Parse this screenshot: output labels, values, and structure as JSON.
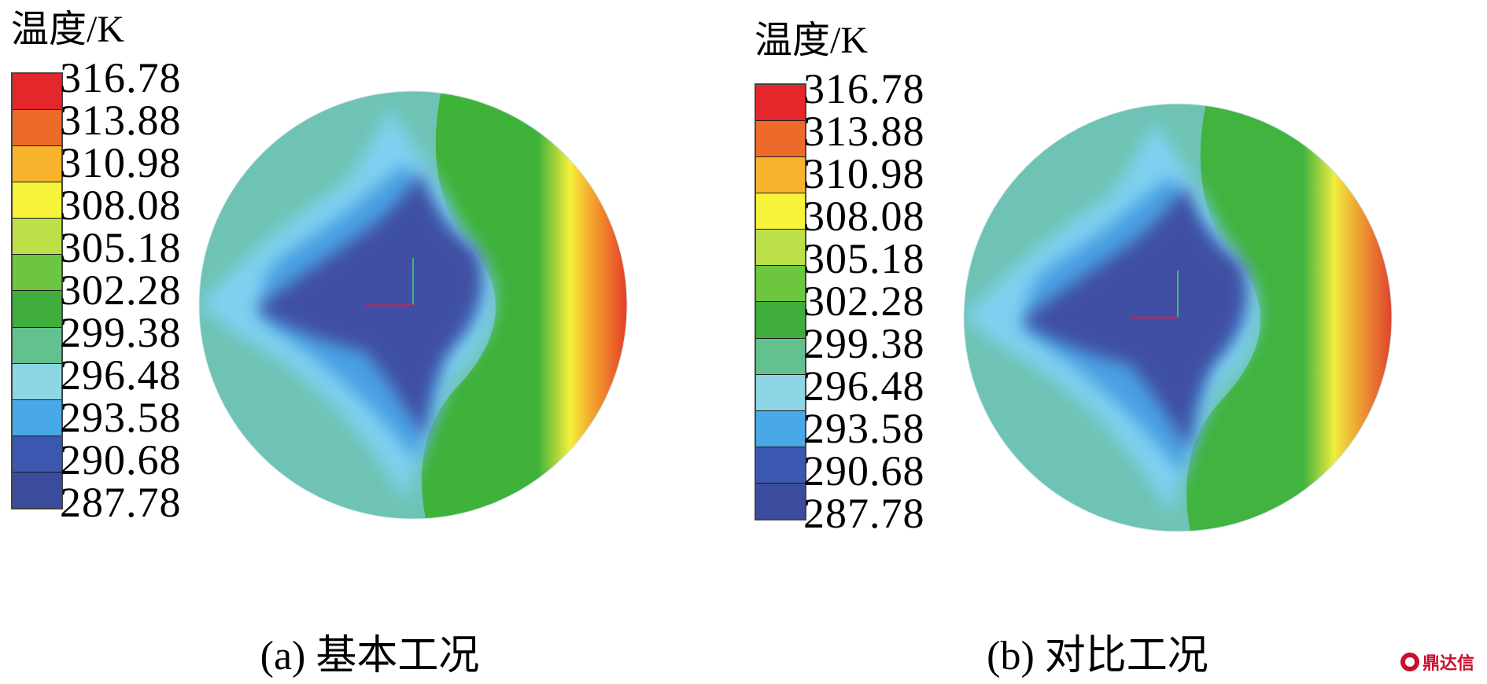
{
  "legend": {
    "unit_title": "温度/K",
    "ticks": [
      "316.78",
      "313.88",
      "310.98",
      "308.08",
      "305.18",
      "302.28",
      "299.38",
      "296.48",
      "293.58",
      "290.68",
      "287.78"
    ],
    "band_colors": [
      "#e3272b",
      "#ee6a2a",
      "#f7b32c",
      "#f7f33a",
      "#bde04a",
      "#6cc63f",
      "#3fae3c",
      "#63c08f",
      "#8ed6e6",
      "#48a8e8",
      "#3c57b0",
      "#3c4c9c"
    ]
  },
  "panels": [
    {
      "caption": "(a) 基本工况",
      "hot_intensity": 1.0
    },
    {
      "caption": "(b) 对比工况",
      "hot_intensity": 0.75
    }
  ],
  "colors": {
    "cold_core": "#3f4fa3",
    "cool_blue": "#4aa0e2",
    "light_blue": "#7fd0f0",
    "teal": "#6ec3b4",
    "green": "#3fb23a",
    "yellow": "#f5ef3a",
    "orange": "#f49a2c",
    "red": "#e02c27"
  },
  "watermark": {
    "text": "鼎达信",
    "icon": "brand-logo-icon"
  }
}
